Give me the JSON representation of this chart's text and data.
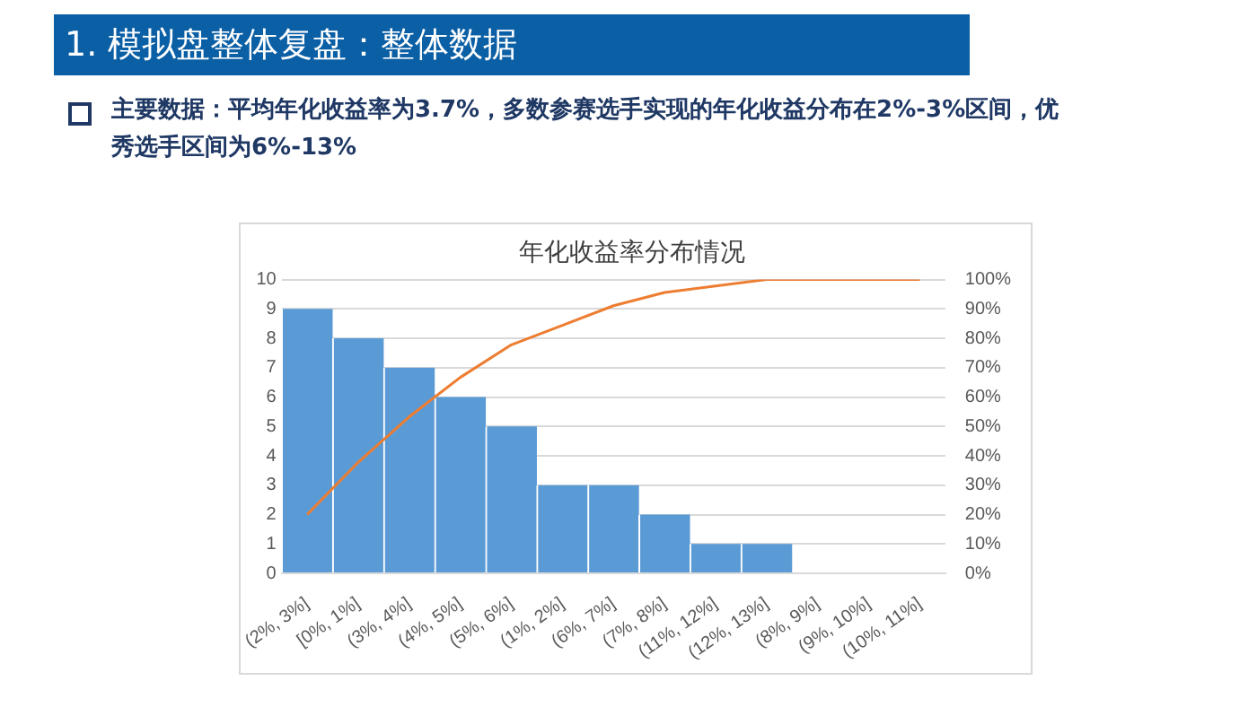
{
  "chart_data": {
    "type": "bar",
    "title": "年化收益率分布情况",
    "annotations": [
      "1. 模拟盘整体复盘：整体数据",
      "主要数据：平均年化收益率为3.7%，多数参赛选手实现的年化收益分布在2%-3%区间，优秀选手区间为6%-13%"
    ],
    "categories": [
      "(2%, 3%]",
      "[0%, 1%]",
      "(3%, 4%]",
      "(4%, 5%]",
      "(5%, 6%]",
      "(1%, 2%]",
      "(6%, 7%]",
      "(7%, 8%]",
      "(11%, 12%]",
      "(12%, 13%]",
      "(8%, 9%]",
      "(9%, 10%]",
      "(10%, 11%]"
    ],
    "series": [
      {
        "color": "#5b9bd5",
        "values": [
          9,
          8,
          7,
          6,
          5,
          3,
          3,
          2,
          1,
          1,
          0,
          0,
          0
        ]
      },
      {
        "type": "line",
        "axis": "y2",
        "color": "#ed7d31",
        "values": [
          20,
          37.8,
          53.3,
          66.7,
          77.8,
          84.4,
          91.1,
          95.6,
          97.8,
          100,
          100,
          100,
          100
        ]
      }
    ],
    "ylim": [
      0,
      10
    ],
    "yticks": [
      0,
      1,
      2,
      3,
      4,
      5,
      6,
      7,
      8,
      9,
      10
    ],
    "y2lim": [
      0,
      100
    ],
    "y2ticks": [
      {
        "value": 0,
        "label": "0%"
      },
      {
        "value": 10,
        "label": "10%"
      },
      {
        "value": 20,
        "label": "20%"
      },
      {
        "value": 30,
        "label": "30%"
      },
      {
        "value": 40,
        "label": "40%"
      },
      {
        "value": 50,
        "label": "50%"
      },
      {
        "value": 60,
        "label": "60%"
      },
      {
        "value": 70,
        "label": "70%"
      },
      {
        "value": 80,
        "label": "80%"
      },
      {
        "value": 90,
        "label": "90%"
      },
      {
        "value": 100,
        "label": "100%"
      }
    ],
    "grid": "y",
    "legend": false,
    "marker": "none",
    "line_style": "solid"
  }
}
